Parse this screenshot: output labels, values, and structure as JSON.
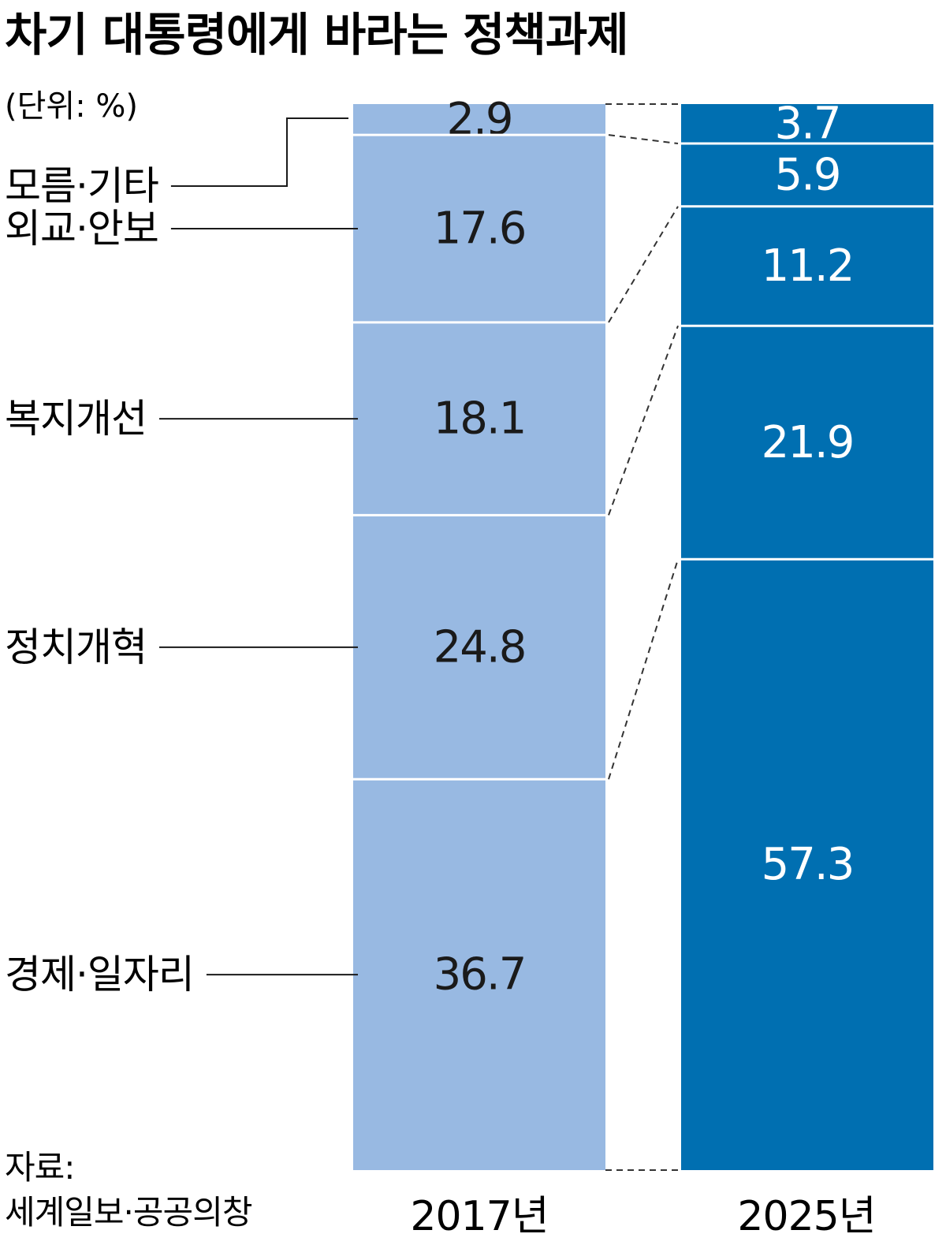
{
  "title": "차기 대통령에게 바라는 정책과제",
  "unit": "(단위: %)",
  "source_label": "자료:",
  "source_text": "세계일보·공공의창",
  "colors": {
    "bar_2017": "#98b9e2",
    "bar_2025": "#006fb1",
    "text_2017": "#1a1a1a",
    "text_2025": "#ffffff"
  },
  "chart_data": {
    "type": "bar",
    "stacked": true,
    "orientation": "vertical",
    "categories": [
      "2017년",
      "2025년"
    ],
    "series": [
      {
        "name": "경제·일자리",
        "values": [
          36.7,
          57.3
        ]
      },
      {
        "name": "정치개혁",
        "values": [
          24.8,
          21.9
        ]
      },
      {
        "name": "복지개선",
        "values": [
          18.1,
          11.2
        ]
      },
      {
        "name": "외교·안보",
        "values": [
          17.6,
          5.9
        ]
      },
      {
        "name": "모름·기타",
        "values": [
          2.9,
          3.7
        ]
      }
    ],
    "ylim": [
      0,
      100
    ],
    "grid": false,
    "legend": "left"
  }
}
